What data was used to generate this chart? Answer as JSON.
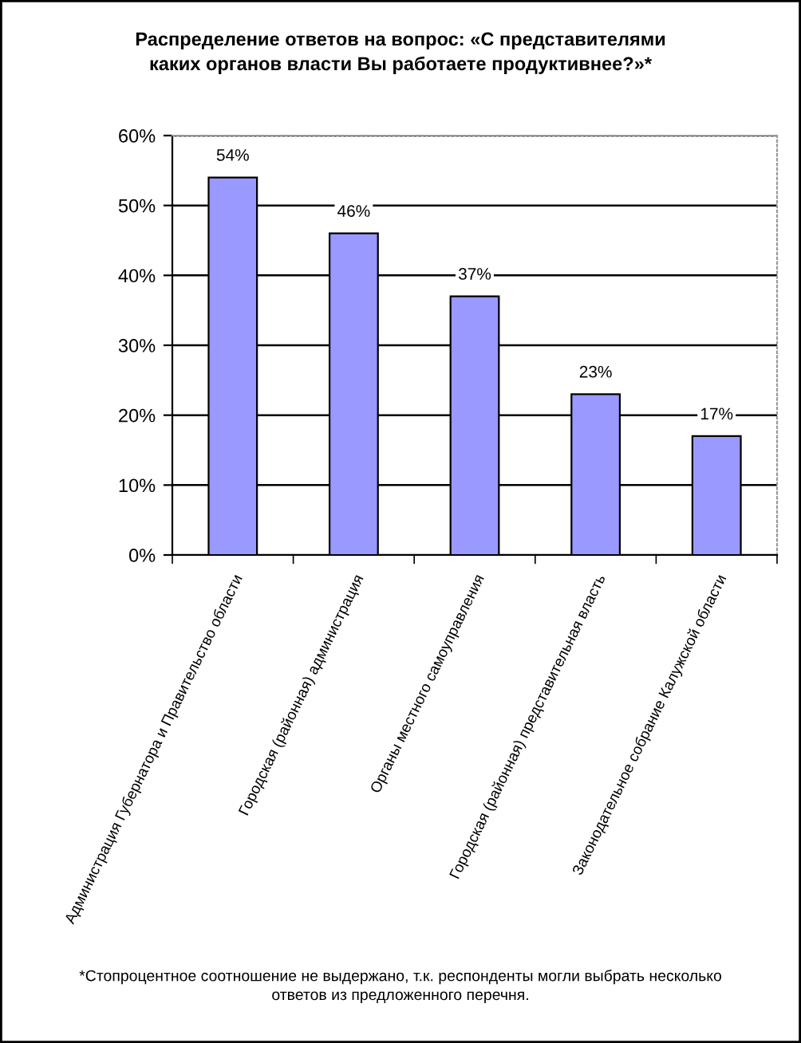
{
  "chart_data": {
    "type": "bar",
    "title": "Распределение ответов на вопрос: «С представителями\nкаких органов власти Вы работаете продуктивнее?»*",
    "categories": [
      "Администрация Губернатора и Правительство области",
      "Городская (районная) администрация",
      "Органы местного самоуправления",
      "Городская (районная) представительная власть",
      "Законодательное собрание Калужской области"
    ],
    "values": [
      54,
      46,
      37,
      23,
      17
    ],
    "value_labels": [
      "54%",
      "46%",
      "37%",
      "23%",
      "17%"
    ],
    "color": "#9999ff",
    "ylim": [
      0,
      60
    ],
    "yticks": [
      {
        "value": 0,
        "label": "0%"
      },
      {
        "value": 10,
        "label": "10%"
      },
      {
        "value": 20,
        "label": "20%"
      },
      {
        "value": 30,
        "label": "30%"
      },
      {
        "value": 40,
        "label": "40%"
      },
      {
        "value": 50,
        "label": "50%"
      },
      {
        "value": 60,
        "label": "60%"
      }
    ],
    "grid": "y",
    "annotations": [
      "*Стопроцентное соотношение не выдержано, т.к. респонденты могли выбрать несколько\nответов из предложенного перечня."
    ]
  }
}
